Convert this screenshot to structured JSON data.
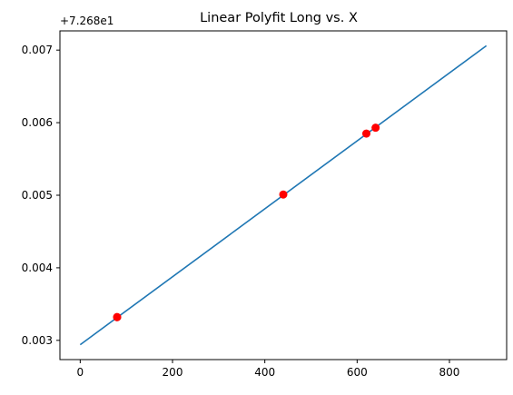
{
  "chart_data": {
    "type": "line",
    "title": "Linear Polyfit Long vs. X",
    "xlabel": "",
    "ylabel": "",
    "y_offset_label": "+7.268e1",
    "xlim": [
      -43.95,
      923.95
    ],
    "ylim": [
      0.002735,
      0.007265
    ],
    "x_ticks": [
      0,
      200,
      400,
      600,
      800
    ],
    "x_tick_labels": [
      "0",
      "200",
      "400",
      "600",
      "800"
    ],
    "y_ticks": [
      0.003,
      0.004,
      0.005,
      0.006,
      0.007
    ],
    "y_tick_labels": [
      "0.003",
      "0.004",
      "0.005",
      "0.006",
      "0.007"
    ],
    "grid": false,
    "series": [
      {
        "kind": "line",
        "color": "#1f77b4",
        "x": [
          0,
          880
        ],
        "y": [
          0.00294,
          0.00706
        ]
      },
      {
        "kind": "scatter",
        "color": "#ff0000",
        "x": [
          80,
          80,
          440,
          620,
          640
        ],
        "y": [
          0.00332,
          0.00332,
          0.00501,
          0.00585,
          0.00593
        ]
      }
    ]
  }
}
